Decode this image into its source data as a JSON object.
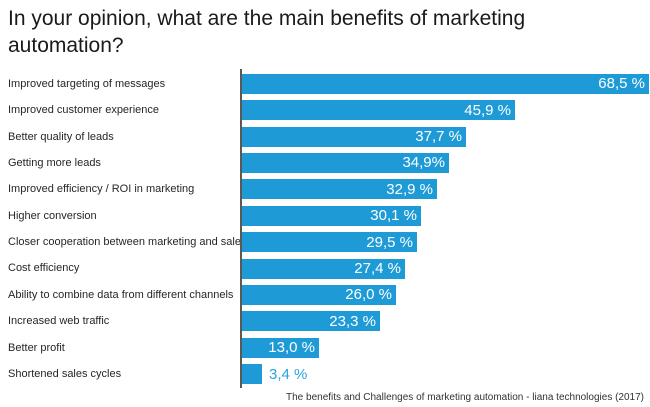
{
  "header": {
    "title": "In your opinion, what are the main benefits of marketing automation?"
  },
  "footer": {
    "source": "The benefits and Challenges of marketing automation - liana technologies (2017)"
  },
  "colors": {
    "bar": "#1e9bd7",
    "axis": "#595959",
    "value_label_inside": "#ffffff",
    "value_label_outside": "#2aa4dc"
  },
  "chart_data": {
    "type": "bar",
    "orientation": "horizontal",
    "title": "In your opinion, what are the main benefits of marketing automation?",
    "xlabel": "",
    "ylabel": "",
    "xlim": [
      0,
      68.5
    ],
    "grid": false,
    "legend": "none",
    "value_suffix": "%",
    "decimal_separator": ",",
    "categories": [
      "Improved targeting of messages",
      "Improved customer experience",
      "Better quality of leads",
      "Getting more leads",
      "Improved efficiency / ROI in marketing",
      "Higher conversion",
      "Closer cooperation between marketing and sales",
      "Cost efficiency",
      "Ability to combine data from different channels",
      "Increased web traffic",
      "Better profit",
      "Shortened sales cycles"
    ],
    "values": [
      68.5,
      45.9,
      37.7,
      34.9,
      32.9,
      30.1,
      29.5,
      27.4,
      26.0,
      23.3,
      13.0,
      3.4
    ],
    "items": [
      {
        "label": "Improved targeting of messages",
        "value": 68.5,
        "display": "68,5 %"
      },
      {
        "label": "Improved customer experience",
        "value": 45.9,
        "display": "45,9 %"
      },
      {
        "label": "Better quality of leads",
        "value": 37.7,
        "display": "37,7 %"
      },
      {
        "label": "Getting more leads",
        "value": 34.9,
        "display": "34,9%"
      },
      {
        "label": "Improved efficiency / ROI in marketing",
        "value": 32.9,
        "display": "32,9 %"
      },
      {
        "label": "Higher conversion",
        "value": 30.1,
        "display": "30,1 %"
      },
      {
        "label": "Closer cooperation between marketing and sales",
        "value": 29.5,
        "display": "29,5 %"
      },
      {
        "label": "Cost efficiency",
        "value": 27.4,
        "display": "27,4 %"
      },
      {
        "label": "Ability to combine data from different channels",
        "value": 26.0,
        "display": "26,0 %"
      },
      {
        "label": "Increased web traffic",
        "value": 23.3,
        "display": "23,3 %"
      },
      {
        "label": "Better profit",
        "value": 13.0,
        "display": "13,0 %"
      },
      {
        "label": "Shortened sales cycles",
        "value": 3.4,
        "display": "3,4 %"
      }
    ],
    "source_note": "The benefits and Challenges of marketing automation - liana technologies (2017)"
  }
}
